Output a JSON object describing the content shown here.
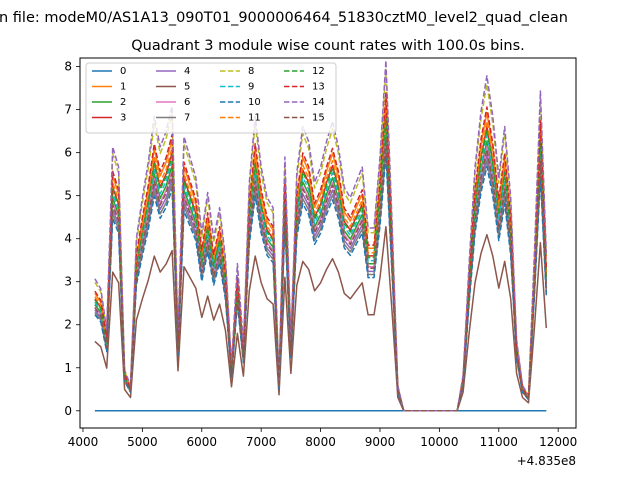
{
  "chart_data": {
    "type": "line",
    "suptitle": "n file: modeM0/AS1A13_090T01_9000006464_51830cztM0_level2_quad_clean",
    "title": "Quadrant 3 module wise count rates with 100.0s bins.",
    "xlabel": "",
    "ylabel": "",
    "x_offset_label": "+4.835e8",
    "xlim": [
      3950,
      12300
    ],
    "ylim": [
      -0.4,
      8.2
    ],
    "xticks": [
      4000,
      5000,
      6000,
      7000,
      8000,
      9000,
      10000,
      11000,
      12000
    ],
    "yticks": [
      0,
      1,
      2,
      3,
      4,
      5,
      6,
      7,
      8
    ],
    "grid": false,
    "legend": {
      "position": "top-left",
      "columns": 4
    },
    "x": [
      4200,
      4300,
      4400,
      4500,
      4600,
      4700,
      4800,
      4900,
      5000,
      5100,
      5200,
      5300,
      5400,
      5500,
      5600,
      5700,
      5800,
      5900,
      6000,
      6100,
      6200,
      6300,
      6400,
      6500,
      6600,
      6700,
      6800,
      6900,
      7000,
      7100,
      7200,
      7300,
      7400,
      7500,
      7600,
      7700,
      7800,
      7900,
      8000,
      8100,
      8200,
      8300,
      8400,
      8500,
      8600,
      8700,
      8800,
      8900,
      9000,
      9100,
      9200,
      9300,
      9400,
      9500,
      9600,
      9700,
      9800,
      9900,
      10000,
      10100,
      10200,
      10300,
      10400,
      10500,
      10600,
      10700,
      10800,
      10900,
      11000,
      11100,
      11200,
      11300,
      11400,
      11500,
      11600,
      11700,
      11800
    ],
    "base_profile": [
      2.6,
      2.4,
      1.6,
      5.2,
      4.8,
      0.8,
      0.5,
      3.4,
      4.2,
      4.9,
      5.8,
      5.2,
      5.5,
      6.0,
      1.5,
      5.4,
      5.0,
      4.6,
      3.5,
      4.3,
      3.4,
      4.0,
      3.0,
      0.9,
      2.9,
      1.3,
      4.5,
      5.8,
      4.8,
      4.2,
      4.0,
      0.6,
      5.0,
      1.4,
      4.7,
      5.6,
      5.3,
      4.5,
      4.8,
      5.3,
      5.7,
      5.2,
      4.4,
      4.2,
      4.5,
      4.8,
      3.6,
      3.6,
      5.0,
      6.9,
      3.8,
      0.5,
      0.0,
      0.0,
      0.0,
      0.0,
      0.0,
      0.0,
      0.0,
      0.0,
      0.0,
      0.0,
      0.7,
      2.9,
      4.8,
      5.9,
      6.6,
      5.8,
      4.6,
      5.6,
      4.2,
      1.4,
      0.5,
      0.3,
      3.1,
      6.3,
      3.1
    ],
    "series": [
      {
        "name": "0",
        "color": "#1f77b4",
        "dash": "solid",
        "scale": 0.0
      },
      {
        "name": "1",
        "color": "#ff7f0e",
        "dash": "solid",
        "scale": 1.05
      },
      {
        "name": "2",
        "color": "#2ca02c",
        "dash": "solid",
        "scale": 0.95
      },
      {
        "name": "3",
        "color": "#d62728",
        "dash": "solid",
        "scale": 1.0
      },
      {
        "name": "4",
        "color": "#9467bd",
        "dash": "solid",
        "scale": 0.9
      },
      {
        "name": "5",
        "color": "#8c564b",
        "dash": "solid",
        "scale": 0.62
      },
      {
        "name": "6",
        "color": "#e377c2",
        "dash": "solid",
        "scale": 0.93
      },
      {
        "name": "7",
        "color": "#7f7f7f",
        "dash": "solid",
        "scale": 0.88
      },
      {
        "name": "8",
        "color": "#bcbd22",
        "dash": "dashed",
        "scale": 1.15
      },
      {
        "name": "9",
        "color": "#17becf",
        "dash": "dashed",
        "scale": 0.97
      },
      {
        "name": "10",
        "color": "#1f77b4",
        "dash": "dashed",
        "scale": 0.86
      },
      {
        "name": "11",
        "color": "#ff7f0e",
        "dash": "dashed",
        "scale": 1.02
      },
      {
        "name": "12",
        "color": "#2ca02c",
        "dash": "dashed",
        "scale": 0.99
      },
      {
        "name": "13",
        "color": "#d62728",
        "dash": "dashed",
        "scale": 1.07
      },
      {
        "name": "14",
        "color": "#9467bd",
        "dash": "dashed",
        "scale": 1.18
      },
      {
        "name": "15",
        "color": "#8c564b",
        "dash": "dashed",
        "scale": 0.92
      }
    ]
  }
}
